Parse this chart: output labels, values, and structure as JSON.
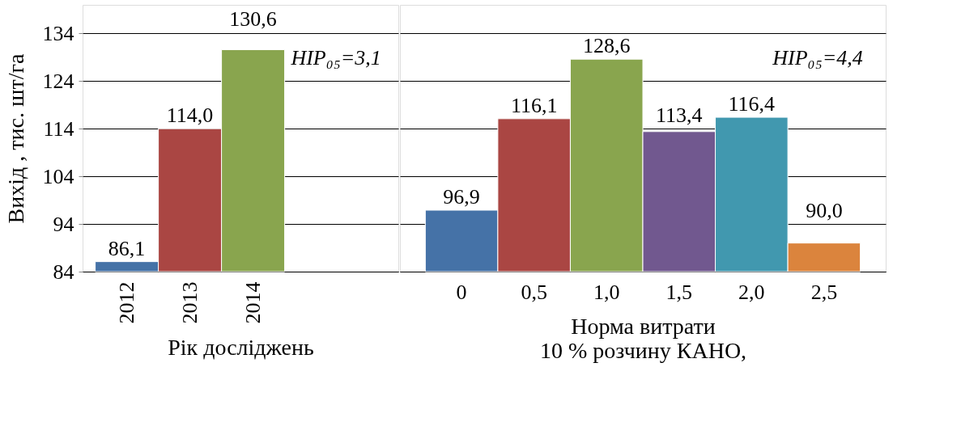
{
  "chart_data": [
    {
      "type": "bar",
      "categories": [
        "2012",
        "2013",
        "2014"
      ],
      "values": [
        86.1,
        114.0,
        130.6
      ],
      "value_labels": [
        "86,1",
        "114,0",
        "130,6"
      ],
      "colors": [
        "#4572a7",
        "#aa4643",
        "#89a54e"
      ],
      "ylabel": "Вихід , тис. шт/га",
      "xlabel": "Рік досліджень",
      "ylim": [
        84,
        140
      ],
      "yticks": [
        84,
        94,
        104,
        114,
        124,
        134
      ],
      "grid": "y",
      "annotations": [
        "НІР₀₅=3,1"
      ]
    },
    {
      "type": "bar",
      "categories": [
        "0",
        "0,5",
        "1,0",
        "1,5",
        "2,0",
        "2,5"
      ],
      "values": [
        96.9,
        116.1,
        128.6,
        113.4,
        116.4,
        90.0
      ],
      "value_labels": [
        "96,9",
        "116,1",
        "128,6",
        "113,4",
        "116,4",
        "90,0"
      ],
      "colors": [
        "#4572a7",
        "#aa4643",
        "#89a54e",
        "#71588f",
        "#4198af",
        "#db843d"
      ],
      "xlabel": "Норма витрати\n10 % розчину КАНО,",
      "ylim": [
        84,
        140
      ],
      "yticks": [
        84,
        94,
        104,
        114,
        124,
        134
      ],
      "grid": "y",
      "tick_labels": "x",
      "annotations": [
        "НІР₀₅=4,4"
      ]
    }
  ]
}
